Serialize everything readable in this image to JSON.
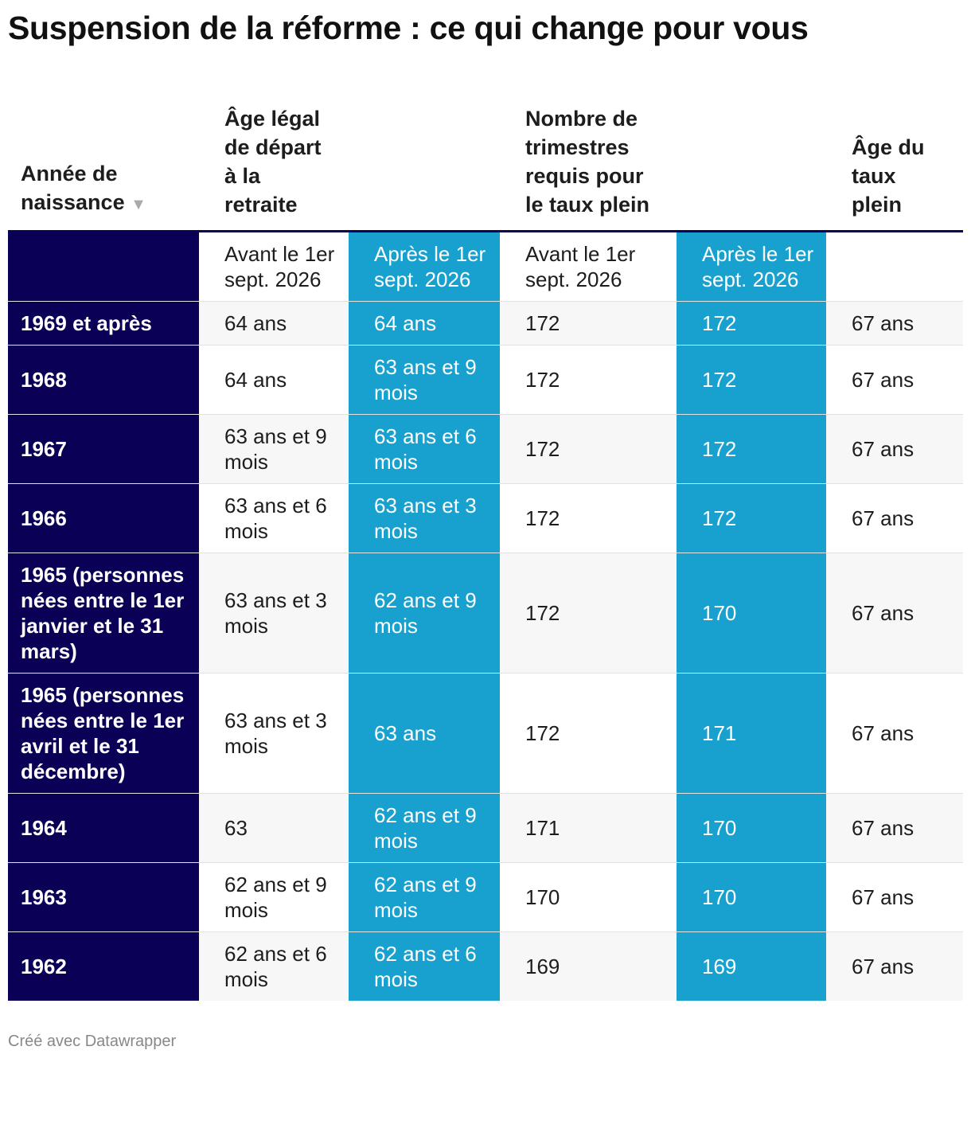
{
  "title": "Suspension de la réforme : ce qui change pour vous",
  "table": {
    "header": [
      "Année de naissance",
      "Âge légal de départ à la retraite",
      "Nombre de trimestres requis pour le taux plein",
      "Âge du taux plein"
    ],
    "subheader": [
      "Avant le 1er sept. 2026",
      "Après le 1er sept. 2026",
      "Avant le 1er sept. 2026",
      "Après le 1er sept. 2026"
    ],
    "rows": [
      [
        "1969 et après",
        "64 ans",
        "64 ans",
        "172",
        "172",
        "67 ans"
      ],
      [
        "1968",
        "64 ans",
        "63 ans et 9 mois",
        "172",
        "172",
        "67 ans"
      ],
      [
        "1967",
        "63 ans et 9 mois",
        "63 ans et 6 mois",
        "172",
        "172",
        "67 ans"
      ],
      [
        "1966",
        "63 ans et 6 mois",
        "63 ans et 3 mois",
        "172",
        "172",
        "67 ans"
      ],
      [
        "1965 (personnes nées entre le 1er janvier et le 31 mars)",
        "63 ans et 3 mois",
        "62 ans et 9 mois",
        "172",
        "170",
        "67 ans"
      ],
      [
        "1965 (personnes nées entre le 1er avril et le 31 décembre)",
        "63 ans et 3 mois",
        "63 ans",
        "172",
        "171",
        "67 ans"
      ],
      [
        "1964",
        "63",
        "62 ans et 9 mois",
        "171",
        "170",
        "67 ans"
      ],
      [
        "1963",
        "62 ans et 9 mois",
        "62 ans et 9 mois",
        "170",
        "170",
        "67 ans"
      ],
      [
        "1962",
        "62 ans et 6 mois",
        "62 ans et 6 mois",
        "169",
        "169",
        "67 ans"
      ]
    ]
  },
  "footer": "Créé avec Datawrapper"
}
